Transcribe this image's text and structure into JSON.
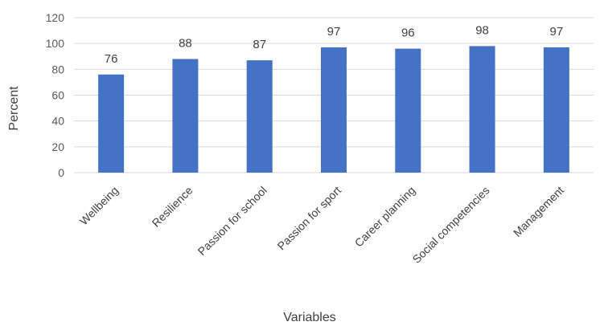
{
  "chart_data": {
    "type": "bar",
    "categories": [
      "Wellbeing",
      "Resilience",
      "Passion for school",
      "Passion for sport",
      "Career planning",
      "Social competencies",
      "Management"
    ],
    "values": [
      76,
      88,
      87,
      97,
      96,
      98,
      97
    ],
    "xlabel": "Variables",
    "ylabel": "Percent",
    "ylim": [
      0,
      120
    ],
    "yticks": [
      0,
      20,
      40,
      60,
      80,
      100,
      120
    ],
    "grid": true,
    "bar_color": "#4472c4",
    "data_labels": true
  }
}
